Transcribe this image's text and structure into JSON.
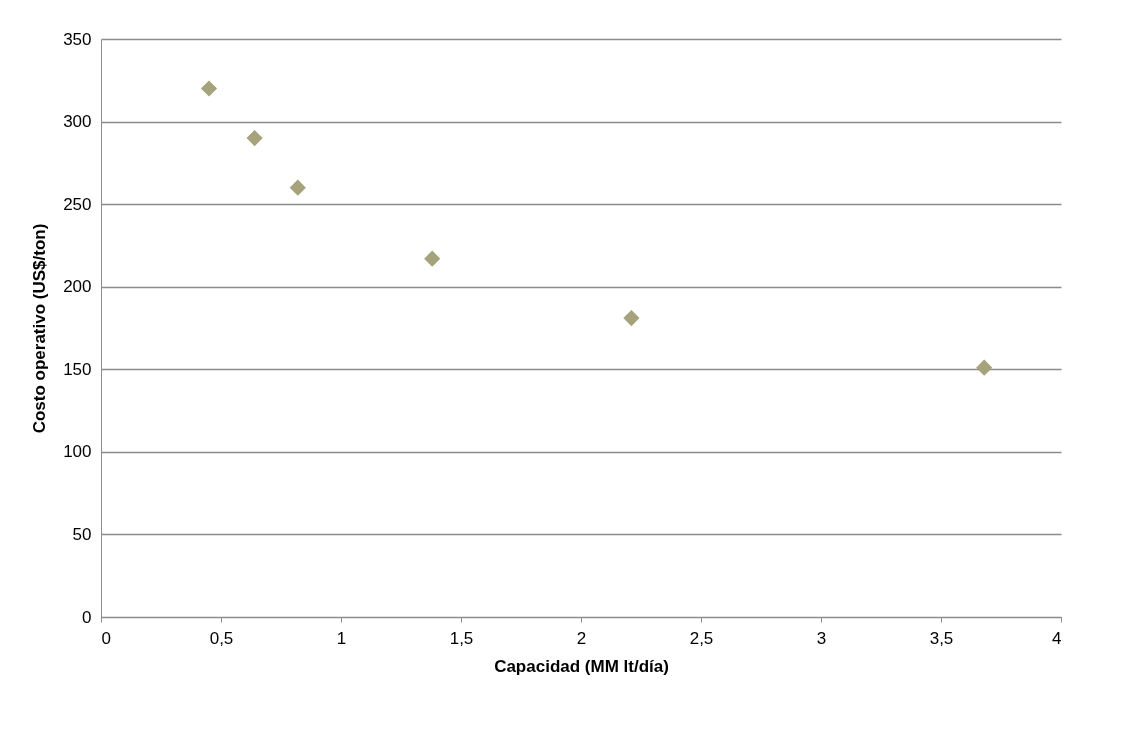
{
  "chart_data": {
    "type": "scatter",
    "xlabel": "Capacidad (MM lt/día)",
    "ylabel": "Costo operativo (US$/ton)",
    "x": [
      0.45,
      0.64,
      0.82,
      1.38,
      2.21,
      3.68
    ],
    "series": [
      {
        "color": "#a5a27c",
        "values": [
          320,
          290,
          260,
          217,
          181,
          151
        ]
      }
    ],
    "xlim": [
      0,
      4
    ],
    "xticks": [
      0,
      {
        "value": 0.5,
        "label": "0,5"
      },
      1,
      {
        "value": 1.5,
        "label": "1,5"
      },
      2,
      {
        "value": 2.5,
        "label": "2,5"
      },
      3,
      {
        "value": 3.5,
        "label": "3,5"
      },
      4
    ],
    "ylim": [
      0,
      350
    ],
    "yticks": [
      0,
      50,
      100,
      150,
      200,
      250,
      300,
      350
    ],
    "grid": "y",
    "marker": "diamond"
  }
}
